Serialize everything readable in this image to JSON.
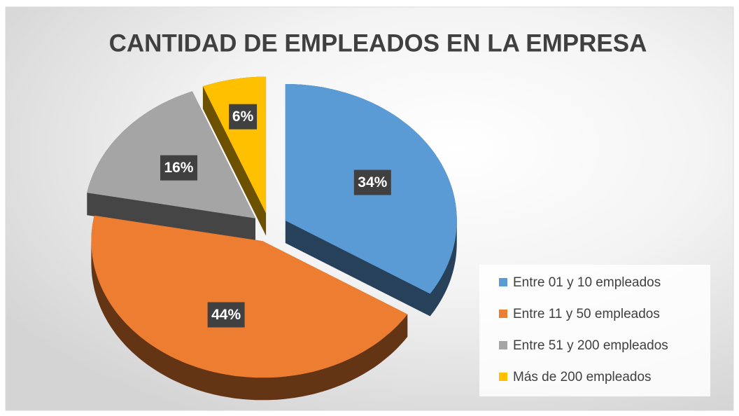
{
  "chart_data": {
    "type": "pie",
    "title": "CANTIDAD DE EMPLEADOS EN LA EMPRESA",
    "categories": [
      "Entre 01 y 10 empleados",
      "Entre 11 y 50 empleados",
      "Entre 51 y 200 empleados",
      "Más de 200 empleados"
    ],
    "values": [
      34,
      44,
      16,
      6
    ],
    "value_labels": [
      "34%",
      "44%",
      "16%",
      "6%"
    ],
    "colors": [
      "#5b9bd5",
      "#ed7d31",
      "#a5a5a5",
      "#ffc000"
    ],
    "legend": "right"
  }
}
